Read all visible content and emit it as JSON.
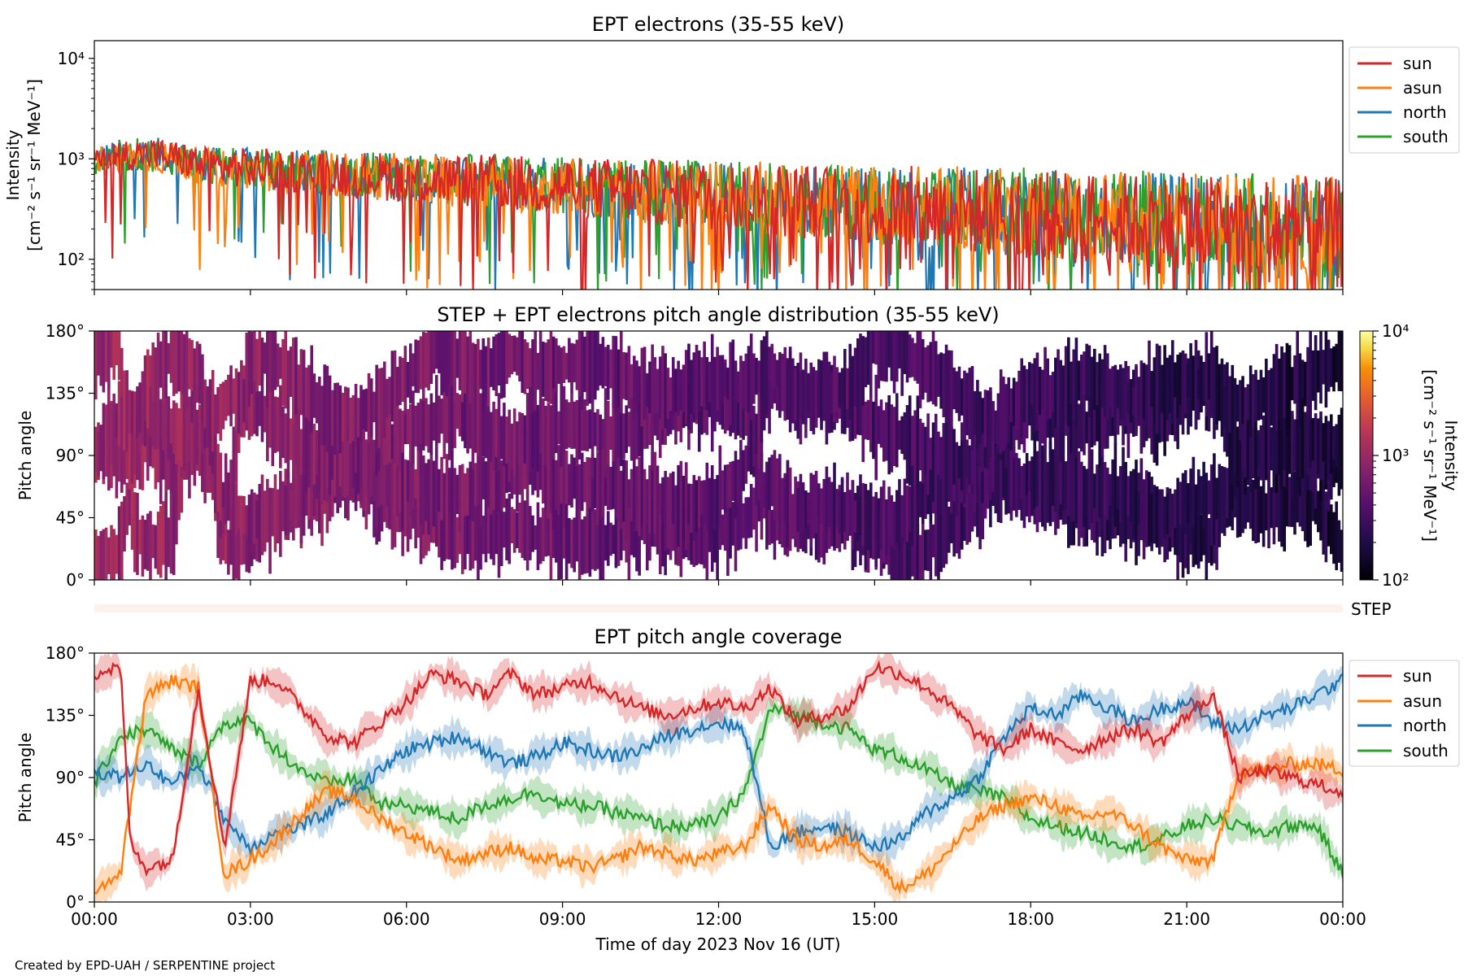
{
  "footer_credit": "Created by EPD-UAH / SERPENTINE project",
  "colors": {
    "sun": "#d62728",
    "asun": "#ff7f0e",
    "north": "#1f77b4",
    "south": "#2ca02c",
    "step_bar": "#fdf1ec"
  },
  "chart_data": [
    {
      "type": "line",
      "title": "EPT electrons (35-55 keV)",
      "ylabel_line1": "Intensity",
      "ylabel_line2": "[cm⁻² s⁻¹ sr⁻¹ MeV⁻¹]",
      "yscale": "log",
      "ylim": [
        50,
        15000
      ],
      "y_tick_labels": [
        "10²",
        "10³",
        "10⁴"
      ],
      "y_tick_values": [
        100,
        1000,
        10000
      ],
      "x_hours_range": [
        0,
        24
      ],
      "legend_placement": "outside-right",
      "series": [
        {
          "name": "sun",
          "key": "sun",
          "start": 1000,
          "end": 180,
          "scatter": 0.75
        },
        {
          "name": "asun",
          "key": "asun",
          "start": 950,
          "end": 200,
          "scatter": 0.7
        },
        {
          "name": "north",
          "key": "north",
          "start": 1000,
          "end": 190,
          "scatter": 0.7
        },
        {
          "name": "south",
          "key": "south",
          "start": 980,
          "end": 200,
          "scatter": 0.7
        }
      ]
    },
    {
      "type": "heatmap",
      "title": "STEP + EPT electrons pitch angle distribution (35-55 keV)",
      "ylabel": "Pitch angle",
      "ylim": [
        0,
        180
      ],
      "y_tick_labels": [
        "0°",
        "45°",
        "90°",
        "135°",
        "180°"
      ],
      "y_tick_values": [
        0,
        45,
        90,
        135,
        180
      ],
      "colorbar": {
        "label_line1": "Intensity",
        "label_line2": "[cm⁻² s⁻¹ sr⁻¹ MeV⁻¹]",
        "scale": "log",
        "range": [
          100,
          10000
        ],
        "tick_labels": [
          "10²",
          "10³",
          "10⁴"
        ],
        "tick_values": [
          100,
          1000,
          10000
        ],
        "colormap": "inferno"
      },
      "intensity_trend": {
        "start": 1000,
        "end": 180
      }
    },
    {
      "type": "bar",
      "label": "STEP"
    },
    {
      "type": "line",
      "title": "EPT pitch angle coverage",
      "ylabel": "Pitch angle",
      "ylim": [
        0,
        180
      ],
      "y_tick_labels": [
        "0°",
        "45°",
        "90°",
        "135°",
        "180°"
      ],
      "y_tick_values": [
        0,
        45,
        90,
        135,
        180
      ],
      "x_tick_labels": [
        "00:00",
        "03:00",
        "06:00",
        "09:00",
        "12:00",
        "15:00",
        "18:00",
        "21:00",
        "00:00"
      ],
      "x_tick_hours": [
        0,
        3,
        6,
        9,
        12,
        15,
        18,
        21,
        24
      ],
      "xlabel": "Time of day 2023 Nov 16 (UT)",
      "legend_placement": "outside-right",
      "series": [
        {
          "name": "sun",
          "key": "sun",
          "x_hours": [
            0,
            0.5,
            0.7,
            1,
            1.5,
            2,
            2.5,
            3,
            3.5,
            4,
            4.5,
            5,
            5.5,
            6,
            6.5,
            7,
            7.5,
            8,
            8.5,
            9,
            9.5,
            10,
            10.5,
            11,
            11.5,
            12,
            12.5,
            13,
            13.5,
            14,
            14.5,
            15,
            15.5,
            16,
            16.5,
            17,
            17.5,
            18,
            18.5,
            19,
            19.5,
            20,
            20.5,
            21,
            21.5,
            22,
            22.5,
            23,
            23.5,
            24
          ],
          "values": [
            165,
            170,
            40,
            25,
            30,
            155,
            40,
            160,
            160,
            140,
            120,
            115,
            130,
            145,
            165,
            160,
            150,
            165,
            150,
            155,
            160,
            150,
            140,
            135,
            140,
            145,
            140,
            155,
            130,
            135,
            140,
            170,
            165,
            155,
            140,
            120,
            110,
            125,
            115,
            110,
            120,
            125,
            115,
            135,
            150,
            90,
            95,
            90,
            85,
            80
          ]
        },
        {
          "name": "asun",
          "key": "asun",
          "x_hours": [
            0,
            0.5,
            1,
            1.5,
            2,
            2.5,
            3,
            3.5,
            4,
            4.5,
            5,
            5.5,
            6,
            6.5,
            7,
            7.5,
            8,
            8.5,
            9,
            9.5,
            10,
            10.5,
            11,
            11.5,
            12,
            12.5,
            13,
            13.5,
            14,
            14.5,
            15,
            15.5,
            16,
            16.5,
            17,
            17.5,
            18,
            18.5,
            19,
            19.5,
            20,
            20.5,
            21,
            21.5,
            22,
            22.5,
            23,
            23.5,
            24
          ],
          "values": [
            10,
            20,
            150,
            160,
            155,
            20,
            30,
            45,
            65,
            80,
            75,
            60,
            50,
            40,
            30,
            35,
            40,
            30,
            30,
            25,
            30,
            40,
            35,
            30,
            35,
            40,
            70,
            45,
            40,
            45,
            30,
            10,
            20,
            40,
            60,
            70,
            75,
            70,
            60,
            65,
            55,
            40,
            30,
            30,
            95,
            95,
            100,
            100,
            95
          ]
        },
        {
          "name": "north",
          "key": "north",
          "x_hours": [
            0,
            0.5,
            1,
            1.5,
            2,
            2.5,
            3,
            3.5,
            4,
            4.5,
            5,
            5.5,
            6,
            6.5,
            7,
            7.5,
            8,
            8.5,
            9,
            9.5,
            10,
            10.5,
            11,
            11.5,
            12,
            12.5,
            13,
            13.5,
            14,
            14.5,
            15,
            15.5,
            16,
            16.5,
            17,
            17.5,
            18,
            18.5,
            19,
            19.5,
            20,
            20.5,
            21,
            21.5,
            22,
            22.5,
            23,
            23.5,
            24
          ],
          "values": [
            95,
            90,
            100,
            85,
            100,
            60,
            40,
            50,
            55,
            65,
            80,
            95,
            110,
            115,
            120,
            110,
            100,
            105,
            115,
            110,
            105,
            110,
            120,
            125,
            130,
            125,
            40,
            50,
            55,
            50,
            40,
            45,
            65,
            75,
            90,
            120,
            140,
            135,
            150,
            140,
            130,
            140,
            145,
            130,
            125,
            135,
            140,
            150,
            160
          ]
        },
        {
          "name": "south",
          "key": "south",
          "x_hours": [
            0,
            0.5,
            1,
            1.5,
            2,
            2.5,
            3,
            3.5,
            4,
            4.5,
            5,
            5.5,
            6,
            6.5,
            7,
            7.5,
            8,
            8.5,
            9,
            9.5,
            10,
            10.5,
            11,
            11.5,
            12,
            12.5,
            13,
            13.5,
            14,
            14.5,
            15,
            15.5,
            16,
            16.5,
            17,
            17.5,
            18,
            18.5,
            19,
            19.5,
            20,
            20.5,
            21,
            21.5,
            22,
            22.5,
            23,
            23.5,
            24
          ],
          "values": [
            85,
            120,
            125,
            110,
            100,
            130,
            130,
            110,
            95,
            85,
            90,
            70,
            70,
            65,
            60,
            70,
            75,
            80,
            70,
            70,
            65,
            60,
            55,
            55,
            60,
            80,
            140,
            135,
            130,
            125,
            110,
            105,
            95,
            85,
            80,
            75,
            60,
            55,
            50,
            45,
            40,
            45,
            55,
            60,
            55,
            50,
            55,
            55,
            20
          ]
        }
      ]
    }
  ]
}
